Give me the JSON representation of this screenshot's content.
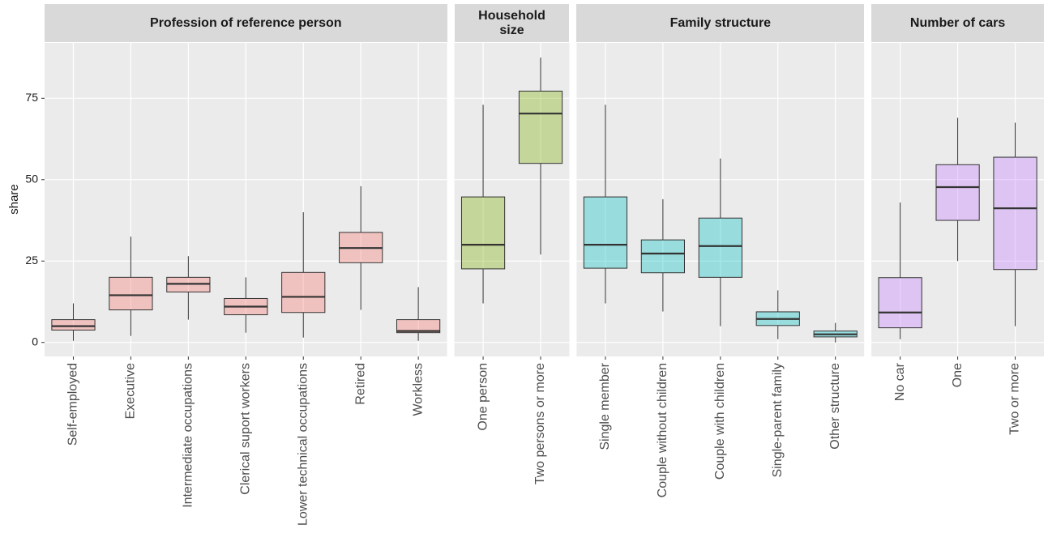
{
  "chart_data": {
    "type": "box",
    "y_label": "share",
    "ylim": [
      -4.3,
      92
    ],
    "yticks": [
      0,
      25,
      50,
      75
    ],
    "grid": true,
    "facets": [
      {
        "title": "Profession of  reference person",
        "color": "#F8766D",
        "categories": [
          "Self-employed",
          "Executive",
          "Intermediate occupations",
          "Clerical suport workers",
          "Lower technical occupations",
          "Retired",
          "Workless"
        ],
        "min": [
          0.5,
          2,
          7,
          3,
          1.5,
          10,
          0.5
        ],
        "q1": [
          3.8,
          10,
          15.5,
          8.5,
          9.2,
          24.5,
          3
        ],
        "median": [
          5,
          14.5,
          18,
          11,
          14,
          29,
          3.5
        ],
        "q3": [
          7,
          20,
          20,
          13.5,
          21.5,
          33.8,
          7
        ],
        "max": [
          12,
          32.5,
          26.5,
          20,
          40,
          48,
          17
        ]
      },
      {
        "title": "Household size",
        "color": "#7CAE00",
        "categories": [
          "One person",
          "Two persons or more"
        ],
        "min": [
          12,
          27
        ],
        "q1": [
          22.6,
          55
        ],
        "median": [
          30,
          70.3
        ],
        "q3": [
          44.7,
          77.2
        ],
        "max": [
          73,
          87.5
        ]
      },
      {
        "title": "Family structure",
        "color": "#00BFC4",
        "categories": [
          "Single member",
          "Couple without children",
          "Couple with children",
          "Single-parent family",
          "Other structure"
        ],
        "min": [
          12,
          9.5,
          5,
          1,
          0
        ],
        "q1": [
          22.8,
          21.4,
          20,
          5.2,
          1.7
        ],
        "median": [
          30,
          27.3,
          29.6,
          7.2,
          2.5
        ],
        "q3": [
          44.7,
          31.5,
          38.2,
          9.4,
          3.5
        ],
        "max": [
          73,
          44,
          56.5,
          16,
          6
        ]
      },
      {
        "title": "Number of cars",
        "color": "#C77CFF",
        "categories": [
          "No car",
          "One",
          "Two or more"
        ],
        "min": [
          1,
          25,
          5
        ],
        "q1": [
          4.5,
          37.5,
          22.4
        ],
        "median": [
          9.2,
          47.7,
          41.2
        ],
        "q3": [
          19.9,
          54.6,
          56.9
        ],
        "max": [
          43,
          69,
          67.5
        ]
      }
    ]
  }
}
